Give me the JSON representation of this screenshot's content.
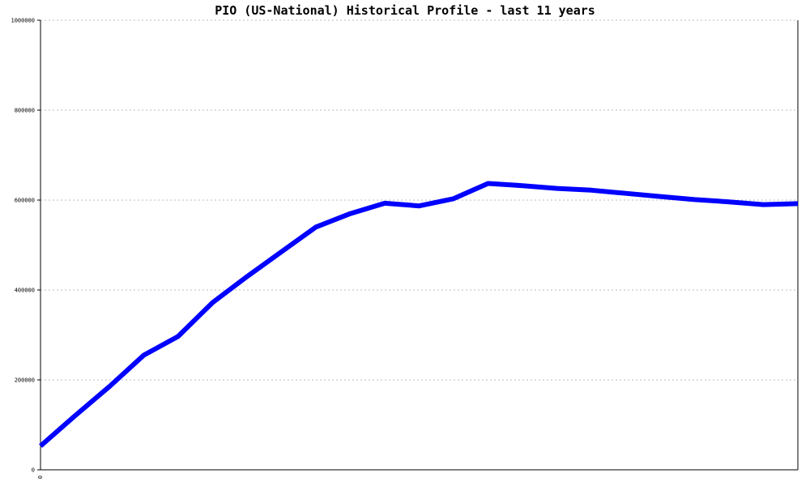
{
  "chart_data": {
    "type": "line",
    "title": "PIO (US-National) Historical Profile - last 11 years",
    "xlabel": "",
    "ylabel": "",
    "ylim": [
      0,
      1000000
    ],
    "y_ticks": [
      "0",
      "200000",
      "400000",
      "600000",
      "800000",
      "1000000"
    ],
    "x_ticks": [
      "0"
    ],
    "grid": true,
    "series": [
      {
        "color": "#0000ff",
        "x": [
          0,
          1,
          2,
          3,
          4,
          5,
          6,
          7,
          8,
          9,
          10,
          11,
          12,
          13,
          14,
          15,
          16,
          17,
          18,
          19,
          20,
          21,
          22
        ],
        "values": [
          53000,
          120000,
          185000,
          255000,
          297000,
          372000,
          430000,
          485000,
          540000,
          570000,
          593000,
          587000,
          603000,
          637000,
          632000,
          626000,
          622000,
          615000,
          608000,
          601000,
          596000,
          590000,
          592000
        ]
      }
    ]
  }
}
